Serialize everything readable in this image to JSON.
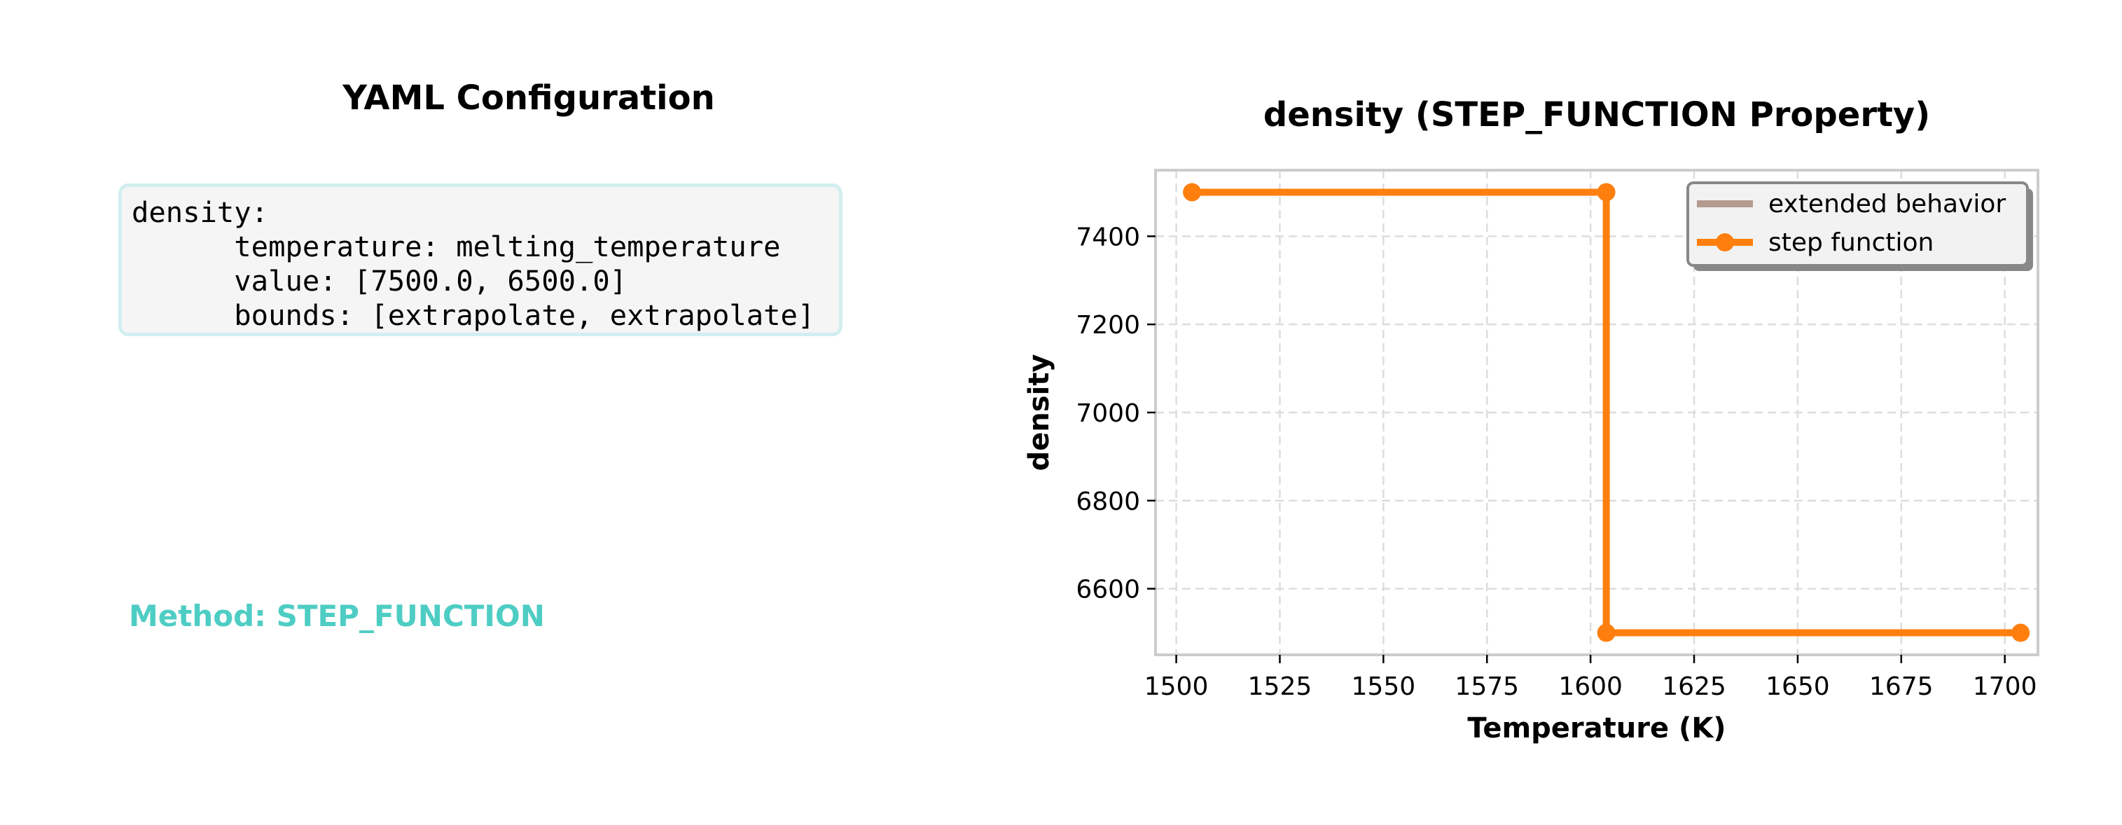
{
  "left_panel": {
    "title": "YAML Configuration",
    "yaml_lines": [
      "density:",
      "      temperature: melting_temperature",
      "      value: [7500.0, 6500.0]",
      "      bounds: [extrapolate, extrapolate]"
    ],
    "method": "Method: STEP_FUNCTION"
  },
  "chart_data": {
    "type": "line",
    "title": "density (STEP_FUNCTION Property)",
    "xlabel": "Temperature (K)",
    "ylabel": "density",
    "xlim": [
      1495,
      1708
    ],
    "ylim": [
      6450,
      7550
    ],
    "xticks": [
      1500,
      1525,
      1550,
      1575,
      1600,
      1625,
      1650,
      1675,
      1700
    ],
    "yticks": [
      6600,
      6800,
      7000,
      7200,
      7400
    ],
    "grid": true,
    "legend_position": "top-right",
    "series": [
      {
        "name": "extended behavior",
        "color": "#b59a8f",
        "x": [],
        "y": []
      },
      {
        "name": "step function",
        "color": "#ff7f0e",
        "marker": "circle",
        "x": [
          1503.8,
          1603.8,
          1603.8,
          1703.8
        ],
        "y": [
          7500,
          7500,
          6500,
          6500
        ]
      }
    ]
  }
}
